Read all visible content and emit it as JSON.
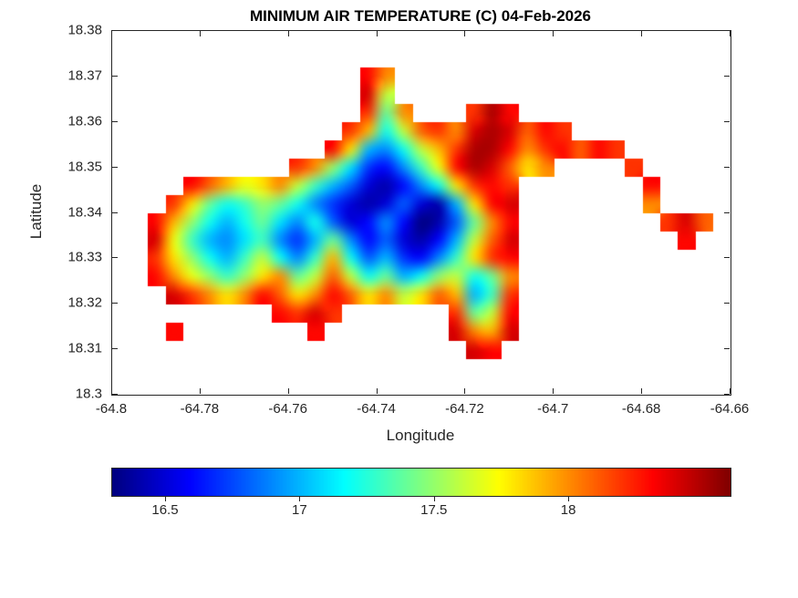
{
  "chart_data": {
    "type": "heatmap",
    "title": "MINIMUM AIR TEMPERATURE (C) 04-Feb-2026",
    "xlabel": "Longitude",
    "ylabel": "Latitude",
    "xlim": [
      -64.8,
      -64.66
    ],
    "ylim": [
      18.3,
      18.38
    ],
    "x_tick_labels": [
      "-64.8",
      "-64.78",
      "-64.76",
      "-64.74",
      "-64.72",
      "-64.7",
      "-64.68",
      "-64.66"
    ],
    "x_tick_values": [
      -64.8,
      -64.78,
      -64.76,
      -64.74,
      -64.72,
      -64.7,
      -64.68,
      -64.66
    ],
    "y_tick_labels": [
      "18.3",
      "18.31",
      "18.32",
      "18.33",
      "18.34",
      "18.35",
      "18.36",
      "18.37",
      "18.38"
    ],
    "y_tick_values": [
      18.3,
      18.31,
      18.32,
      18.33,
      18.34,
      18.35,
      18.36,
      18.37,
      18.38
    ],
    "colormap": "jet",
    "color_range": [
      16.3,
      18.6
    ],
    "colorbar": {
      "orientation": "horizontal",
      "ticks": [
        {
          "label": "16.5",
          "value": 16.5
        },
        {
          "label": "17",
          "value": 17
        },
        {
          "label": "17.5",
          "value": 17.5
        },
        {
          "label": "18",
          "value": 18
        }
      ]
    },
    "grid_info": {
      "lon_start": -64.8,
      "lon_step": 0.004,
      "lat_start": 18.38,
      "lat_step": -0.004,
      "rows": 20,
      "cols": 35,
      "null_means": "ocean / no data"
    },
    "grid": [
      [
        null,
        null,
        null,
        null,
        null,
        null,
        null,
        null,
        null,
        null,
        null,
        null,
        null,
        null,
        null,
        null,
        null,
        null,
        null,
        null,
        null,
        null,
        null,
        null,
        null,
        null,
        null,
        null,
        null,
        null,
        null,
        null,
        null,
        null,
        null
      ],
      [
        null,
        null,
        null,
        null,
        null,
        null,
        null,
        null,
        null,
        null,
        null,
        null,
        null,
        null,
        null,
        null,
        null,
        null,
        null,
        null,
        null,
        null,
        null,
        null,
        null,
        null,
        null,
        null,
        null,
        null,
        null,
        null,
        null,
        null,
        null
      ],
      [
        null,
        null,
        null,
        null,
        null,
        null,
        null,
        null,
        null,
        null,
        null,
        null,
        null,
        null,
        18.3,
        18.0,
        null,
        null,
        null,
        null,
        null,
        null,
        null,
        null,
        null,
        null,
        null,
        null,
        null,
        null,
        null,
        null,
        null,
        null,
        null
      ],
      [
        null,
        null,
        null,
        null,
        null,
        null,
        null,
        null,
        null,
        null,
        null,
        null,
        null,
        null,
        18.4,
        17.6,
        null,
        null,
        null,
        null,
        null,
        null,
        null,
        null,
        null,
        null,
        null,
        null,
        null,
        null,
        null,
        null,
        null,
        null,
        null
      ],
      [
        null,
        null,
        null,
        null,
        null,
        null,
        null,
        null,
        null,
        null,
        null,
        null,
        null,
        null,
        18.2,
        17.4,
        18.0,
        null,
        null,
        null,
        18.2,
        18.5,
        18.3,
        null,
        null,
        null,
        null,
        null,
        null,
        null,
        null,
        null,
        null,
        null,
        null
      ],
      [
        null,
        null,
        null,
        null,
        null,
        null,
        null,
        null,
        null,
        null,
        null,
        null,
        null,
        18.2,
        17.9,
        17.2,
        17.6,
        18.1,
        18.2,
        18.0,
        18.4,
        18.5,
        18.4,
        18.1,
        18.3,
        18.2,
        null,
        null,
        null,
        null,
        null,
        null,
        null,
        null,
        null
      ],
      [
        null,
        null,
        null,
        null,
        null,
        null,
        null,
        null,
        null,
        null,
        null,
        null,
        18.3,
        17.8,
        17.0,
        16.9,
        17.2,
        17.6,
        17.9,
        18.2,
        18.5,
        18.5,
        18.3,
        18.0,
        18.2,
        18.3,
        18.1,
        18.3,
        18.2,
        null,
        null,
        null,
        null,
        null,
        null
      ],
      [
        null,
        null,
        null,
        null,
        null,
        null,
        null,
        null,
        null,
        null,
        18.2,
        18.0,
        17.5,
        17.1,
        16.7,
        16.6,
        16.9,
        17.3,
        17.7,
        18.3,
        18.5,
        18.4,
        18.1,
        17.8,
        18.0,
        null,
        null,
        null,
        null,
        18.2,
        null,
        null,
        null,
        null,
        null
      ],
      [
        null,
        null,
        null,
        null,
        18.3,
        18.1,
        17.9,
        17.7,
        17.8,
        18.0,
        17.6,
        17.3,
        17.0,
        16.8,
        16.5,
        16.4,
        16.6,
        16.9,
        17.2,
        17.8,
        18.2,
        18.3,
        18.2,
        null,
        null,
        null,
        null,
        null,
        null,
        null,
        18.3,
        null,
        null,
        null,
        null
      ],
      [
        null,
        null,
        null,
        18.2,
        17.8,
        17.4,
        17.2,
        17.3,
        17.5,
        17.4,
        17.2,
        16.9,
        16.7,
        16.5,
        16.4,
        16.5,
        16.8,
        16.5,
        16.4,
        17.0,
        17.8,
        18.3,
        18.4,
        null,
        null,
        null,
        null,
        null,
        null,
        null,
        18.0,
        null,
        null,
        null,
        null
      ],
      [
        null,
        null,
        18.3,
        17.9,
        17.5,
        17.2,
        17.0,
        17.2,
        17.4,
        17.1,
        16.9,
        17.2,
        16.8,
        16.5,
        16.6,
        16.9,
        16.6,
        16.3,
        16.4,
        16.8,
        17.4,
        18.0,
        18.3,
        null,
        null,
        null,
        null,
        null,
        null,
        null,
        null,
        18.2,
        18.4,
        18.1,
        null
      ],
      [
        null,
        null,
        18.4,
        17.7,
        17.3,
        17.0,
        16.9,
        17.1,
        17.3,
        16.9,
        16.7,
        17.0,
        17.4,
        16.9,
        16.6,
        16.8,
        16.5,
        16.4,
        16.6,
        17.0,
        17.6,
        18.1,
        18.4,
        null,
        null,
        null,
        null,
        null,
        null,
        null,
        null,
        null,
        18.3,
        null,
        null
      ],
      [
        null,
        null,
        18.2,
        17.8,
        17.5,
        17.2,
        17.0,
        17.3,
        17.6,
        17.2,
        16.9,
        17.3,
        17.9,
        17.2,
        16.8,
        17.0,
        16.7,
        16.6,
        16.9,
        17.3,
        17.8,
        18.2,
        18.3,
        null,
        null,
        null,
        null,
        null,
        null,
        null,
        null,
        null,
        null,
        null,
        null
      ],
      [
        null,
        null,
        18.3,
        18.0,
        17.7,
        17.5,
        17.3,
        17.5,
        17.8,
        18.0,
        17.4,
        17.6,
        18.1,
        17.6,
        17.2,
        17.4,
        17.0,
        17.2,
        17.5,
        17.6,
        17.2,
        17.4,
        18.0,
        null,
        null,
        null,
        null,
        null,
        null,
        null,
        null,
        null,
        null,
        null,
        null
      ],
      [
        null,
        null,
        null,
        18.4,
        18.2,
        18.0,
        17.8,
        18.0,
        18.3,
        18.1,
        17.8,
        18.0,
        18.3,
        18.1,
        17.8,
        18.0,
        17.6,
        17.8,
        18.1,
        17.9,
        17.0,
        17.3,
        18.2,
        null,
        null,
        null,
        null,
        null,
        null,
        null,
        null,
        null,
        null,
        null,
        null
      ],
      [
        null,
        null,
        null,
        null,
        null,
        null,
        null,
        null,
        null,
        18.3,
        18.2,
        18.4,
        18.2,
        null,
        null,
        null,
        null,
        null,
        null,
        18.2,
        17.4,
        17.6,
        18.3,
        null,
        null,
        null,
        null,
        null,
        null,
        null,
        null,
        null,
        null,
        null,
        null
      ],
      [
        null,
        null,
        null,
        18.3,
        null,
        null,
        null,
        null,
        null,
        null,
        null,
        18.3,
        null,
        null,
        null,
        null,
        null,
        null,
        null,
        18.4,
        18.0,
        17.9,
        18.4,
        null,
        null,
        null,
        null,
        null,
        null,
        null,
        null,
        null,
        null,
        null,
        null
      ],
      [
        null,
        null,
        null,
        null,
        null,
        null,
        null,
        null,
        null,
        null,
        null,
        null,
        null,
        null,
        null,
        null,
        null,
        null,
        null,
        null,
        18.4,
        18.3,
        null,
        null,
        null,
        null,
        null,
        null,
        null,
        null,
        null,
        null,
        null,
        null,
        null
      ],
      [
        null,
        null,
        null,
        null,
        null,
        null,
        null,
        null,
        null,
        null,
        null,
        null,
        null,
        null,
        null,
        null,
        null,
        null,
        null,
        null,
        null,
        null,
        null,
        null,
        null,
        null,
        null,
        null,
        null,
        null,
        null,
        null,
        null,
        null,
        null
      ],
      [
        null,
        null,
        null,
        null,
        null,
        null,
        null,
        null,
        null,
        null,
        null,
        null,
        null,
        null,
        null,
        null,
        null,
        null,
        null,
        null,
        null,
        null,
        null,
        null,
        null,
        null,
        null,
        null,
        null,
        null,
        null,
        null,
        null,
        null,
        null
      ]
    ]
  },
  "colors": {
    "axis": "#262626",
    "background": "#ffffff",
    "title_text": "#000000"
  }
}
